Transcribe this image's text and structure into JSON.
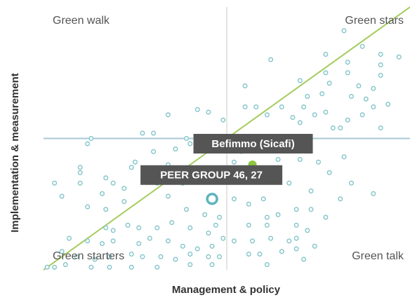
{
  "chart_data": {
    "type": "scatter",
    "x_label": "Management & policy",
    "y_label": "Implementation & measurement",
    "quadrants": {
      "top_left": "Green walk",
      "top_right": "Green stars",
      "bottom_left": "Green starters",
      "bottom_right": "Green talk"
    },
    "xlim": [
      0,
      100
    ],
    "ylim": [
      0,
      100
    ],
    "dividers": {
      "x": 50,
      "y": 50
    },
    "reference_line": {
      "x": [
        0,
        100
      ],
      "y": [
        0,
        100
      ],
      "color": "#a4cc5c"
    },
    "series": [
      {
        "color": "#7ec3c8",
        "x": [
          82,
          87,
          77,
          62,
          92,
          97,
          83,
          92,
          77,
          83,
          92,
          70,
          78,
          55,
          86,
          90,
          72,
          76,
          84,
          88,
          90,
          94,
          65,
          71,
          58,
          55,
          77,
          74,
          87,
          61,
          68,
          83,
          92,
          81,
          79,
          70,
          34,
          42,
          45,
          49,
          13,
          12,
          27,
          30,
          39,
          40,
          10,
          10,
          3,
          5,
          10,
          17,
          19,
          24,
          25,
          34,
          30,
          36,
          22,
          16,
          12,
          17,
          22,
          34,
          31,
          38,
          35,
          42,
          39,
          44,
          48,
          47,
          17,
          19,
          23,
          26,
          31,
          35,
          40,
          45,
          49,
          7,
          12,
          16,
          19,
          26,
          29,
          34,
          38,
          42,
          46,
          5,
          9,
          14,
          18,
          24,
          27,
          32,
          36,
          40,
          45,
          48,
          1,
          3,
          6,
          13,
          18,
          24,
          31,
          40,
          46,
          52,
          54,
          61,
          64,
          70,
          75,
          78,
          82,
          84,
          90,
          81,
          73,
          67,
          60,
          56,
          52,
          64,
          61,
          69,
          73,
          77,
          56,
          61,
          69,
          72,
          52,
          57,
          62,
          67,
          69,
          74,
          56,
          59,
          65,
          69,
          61,
          71
        ],
        "values": [
          91,
          85,
          82,
          80,
          82,
          81,
          79,
          78,
          75,
          75,
          74,
          72,
          71,
          70,
          70,
          69,
          66,
          67,
          66,
          65,
          62,
          63,
          62,
          62,
          62,
          62,
          60,
          59,
          59,
          59,
          58,
          57,
          54,
          54,
          54,
          56,
          59,
          61,
          60,
          57,
          50,
          48,
          52,
          52,
          50,
          48,
          39,
          37,
          33,
          28,
          33,
          35,
          33,
          39,
          41,
          40,
          45,
          46,
          31,
          29,
          24,
          23,
          26,
          28,
          33,
          33,
          36,
          38,
          23,
          21,
          20,
          17,
          16,
          15,
          17,
          16,
          16,
          18,
          16,
          14,
          12,
          12,
          11,
          10,
          11,
          10,
          12,
          11,
          9,
          8,
          9,
          7,
          5,
          4,
          5,
          6,
          5,
          5,
          4,
          6,
          5,
          5,
          1,
          1,
          2,
          1,
          1,
          1,
          1,
          2,
          2,
          41,
          45,
          46,
          42,
          42,
          41,
          37,
          43,
          33,
          29,
          27,
          30,
          33,
          27,
          25,
          27,
          21,
          20,
          23,
          23,
          20,
          17,
          17,
          17,
          15,
          11,
          11,
          12,
          11,
          12,
          9,
          6,
          6,
          7,
          8,
          2,
          4
        ]
      }
    ],
    "highlights": [
      {
        "label": "Befimmo (Sicafi)",
        "x": 57,
        "y": 40,
        "color": "#8dc63f"
      },
      {
        "label": "PEER GROUP 46, 27",
        "x": 46,
        "y": 27,
        "color": "#5fb3bb"
      }
    ]
  }
}
